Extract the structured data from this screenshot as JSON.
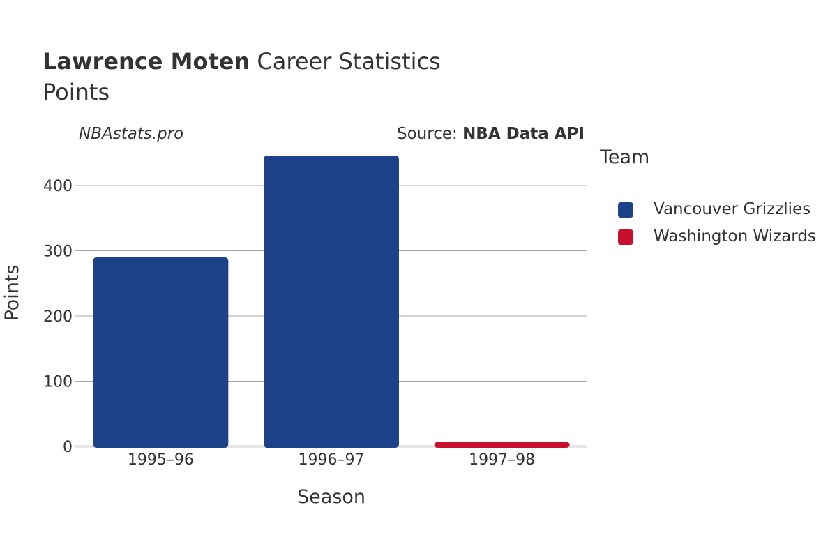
{
  "header": {
    "title_bold": "Lawrence Moten",
    "title_rest": " Career Statistics",
    "subtitle": "Points",
    "watermark": "NBAstats.pro",
    "source_prefix": "Source: ",
    "source_bold": "NBA Data API"
  },
  "legend": {
    "title": "Team",
    "items": [
      {
        "label": "Vancouver Grizzlies",
        "color": "#1d428a"
      },
      {
        "label": "Washington Wizards",
        "color": "#c8102e"
      }
    ]
  },
  "chart_data": {
    "type": "bar",
    "categories": [
      "1995–96",
      "1996–97",
      "1997–98"
    ],
    "series": [
      {
        "name": "Vancouver Grizzlies",
        "color": "#1d428a",
        "values": [
          290,
          446,
          null
        ]
      },
      {
        "name": "Washington Wizards",
        "color": "#c8102e",
        "values": [
          null,
          null,
          7
        ]
      }
    ],
    "xlabel": "Season",
    "ylabel": "Points",
    "ylim": [
      0,
      450
    ],
    "yticks": [
      0,
      100,
      200,
      300,
      400
    ],
    "grid": true,
    "legend_position": "right"
  }
}
